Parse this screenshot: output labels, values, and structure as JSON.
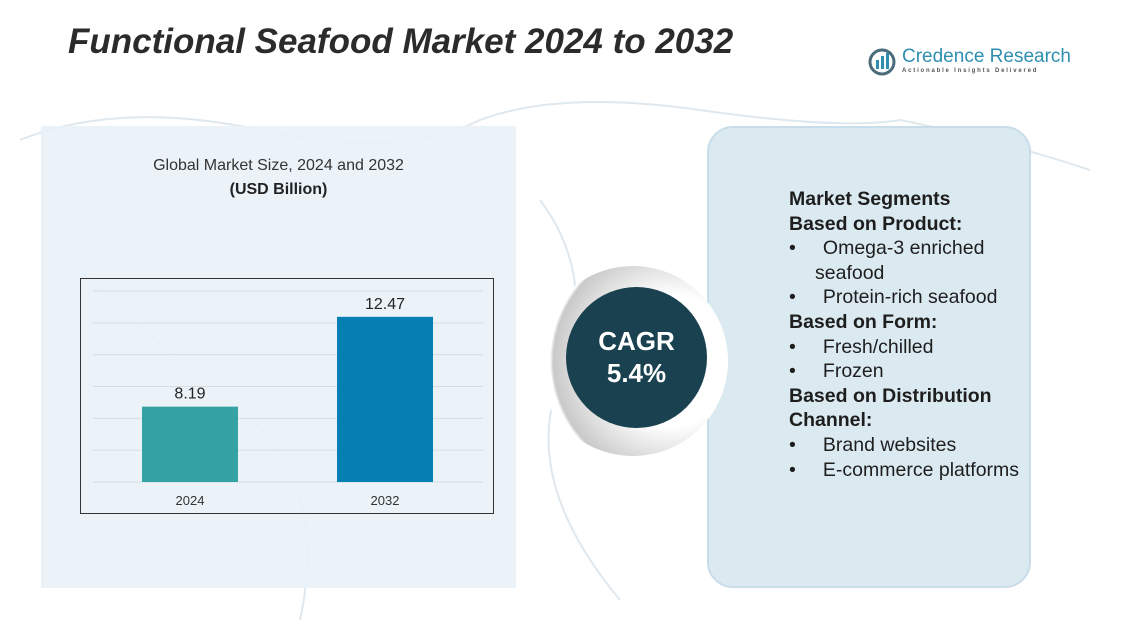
{
  "title": "Functional Seafood Market 2024 to 2032",
  "logo": {
    "name": "Credence Research",
    "tagline": "Actionable Insights Delivered"
  },
  "chart_data": {
    "type": "bar",
    "title": "Global Market Size, 2024 and 2032",
    "ylabel": "(USD Billion)",
    "categories": [
      "2024",
      "2032"
    ],
    "values": [
      8.19,
      12.47
    ],
    "value_labels": [
      "8.19",
      "12.47"
    ],
    "colors": [
      "#35a3a3",
      "#0680b2"
    ],
    "ylim": [
      4.6,
      13.7
    ],
    "grid": true
  },
  "cagr": {
    "label": "CAGR",
    "value": "5.4%"
  },
  "segments": {
    "heading": "Market Segments",
    "groups": [
      {
        "title": "Based on Product:",
        "items": [
          "Omega-3 enriched seafood",
          "Protein-rich seafood"
        ]
      },
      {
        "title": "Based on Form:",
        "items": [
          "Fresh/chilled",
          "Frozen"
        ]
      },
      {
        "title": "Based on Distribution Channel:",
        "items": [
          "Brand websites",
          "E-commerce platforms"
        ]
      }
    ]
  }
}
